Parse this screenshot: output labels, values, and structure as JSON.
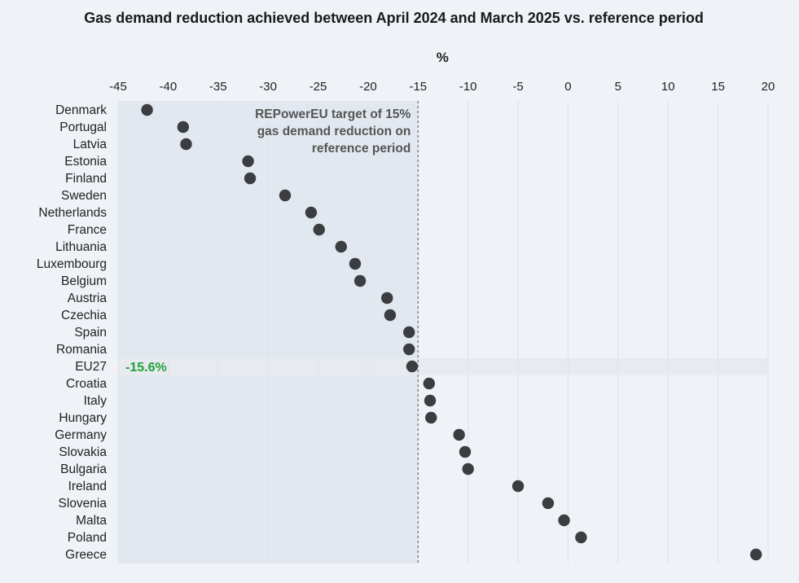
{
  "chart_data": {
    "type": "scatter",
    "title": "Gas demand reduction achieved between April 2024 and March 2025 vs. reference period",
    "xlabel": "%",
    "xlim": [
      -45,
      20
    ],
    "xticks": [
      -45,
      -40,
      -35,
      -30,
      -25,
      -20,
      -15,
      -10,
      -5,
      0,
      5,
      10,
      15,
      20
    ],
    "grid": true,
    "target": {
      "value": -15,
      "label": [
        "REPowerEU target of 15%",
        "gas demand reduction on",
        "reference period"
      ]
    },
    "highlight": {
      "category": "EU27",
      "label": "-15.6%"
    },
    "categories": [
      "Denmark",
      "Portugal",
      "Latvia",
      "Estonia",
      "Finland",
      "Sweden",
      "Netherlands",
      "France",
      "Lithuania",
      "Luxembourg",
      "Belgium",
      "Austria",
      "Czechia",
      "Spain",
      "Romania",
      "EU27",
      "Croatia",
      "Italy",
      "Hungary",
      "Germany",
      "Slovakia",
      "Bulgaria",
      "Ireland",
      "Slovenia",
      "Malta",
      "Poland",
      "Greece"
    ],
    "values": [
      -42.1,
      -38.5,
      -38.2,
      -32.0,
      -31.8,
      -28.3,
      -25.7,
      -24.9,
      -22.7,
      -21.3,
      -20.8,
      -18.1,
      -17.8,
      -15.9,
      -15.9,
      -15.6,
      -13.9,
      -13.8,
      -13.7,
      -10.9,
      -10.3,
      -10.0,
      -5.0,
      -2.0,
      -0.4,
      1.3,
      18.8
    ],
    "colors": {
      "point": "#3b3d40",
      "shade": "#e2e8ef",
      "eu_band": "#e7ebf0",
      "grid": "#dfe3ea",
      "eu_label": "#1fa23a"
    }
  }
}
